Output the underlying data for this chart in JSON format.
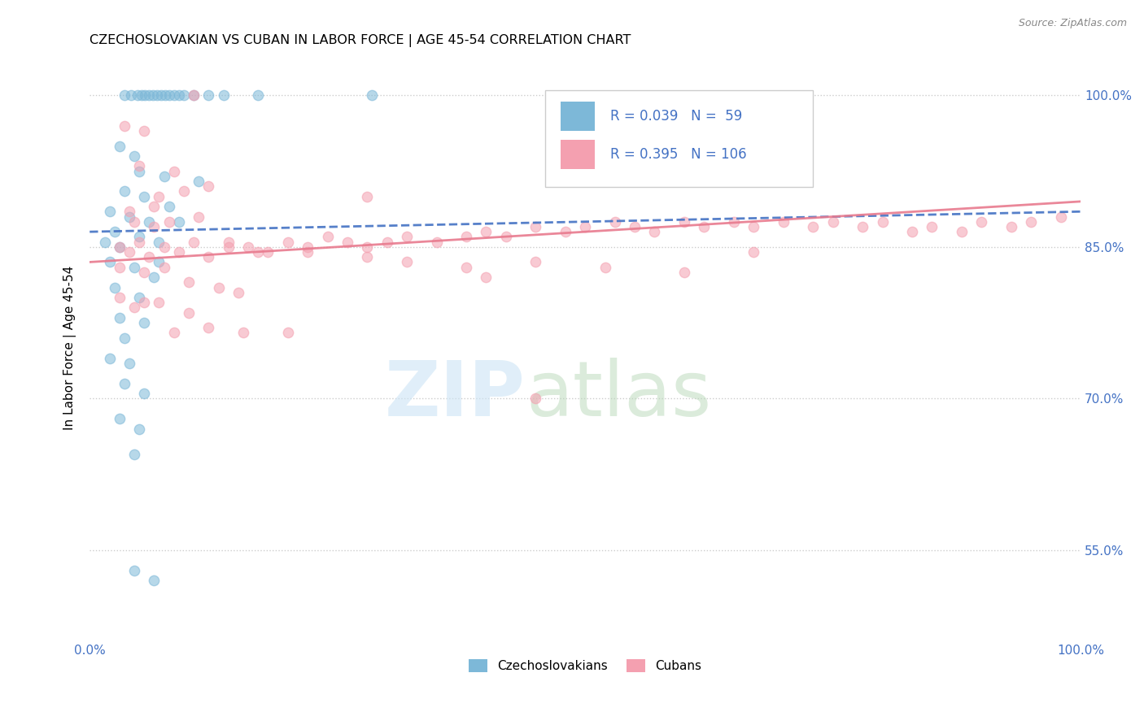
{
  "title": "CZECHOSLOVAKIAN VS CUBAN IN LABOR FORCE | AGE 45-54 CORRELATION CHART",
  "source": "Source: ZipAtlas.com",
  "ylabel": "In Labor Force | Age 45-54",
  "ylabel_ticks": [
    "55.0%",
    "70.0%",
    "85.0%",
    "100.0%"
  ],
  "legend_r_czech": "0.039",
  "legend_n_czech": "59",
  "legend_r_cuban": "0.395",
  "legend_n_cuban": "106",
  "czech_color": "#7db8d8",
  "cuban_color": "#f4a0b0",
  "xmin": 0.0,
  "xmax": 100.0,
  "ymin": 46.0,
  "ymax": 104.0,
  "ytick_positions": [
    55.0,
    70.0,
    85.0,
    100.0
  ],
  "czech_points": [
    [
      3.5,
      100.0
    ],
    [
      4.2,
      100.0
    ],
    [
      4.8,
      100.0
    ],
    [
      5.2,
      100.0
    ],
    [
      5.6,
      100.0
    ],
    [
      6.0,
      100.0
    ],
    [
      6.4,
      100.0
    ],
    [
      6.8,
      100.0
    ],
    [
      7.2,
      100.0
    ],
    [
      7.6,
      100.0
    ],
    [
      8.0,
      100.0
    ],
    [
      8.5,
      100.0
    ],
    [
      9.0,
      100.0
    ],
    [
      9.5,
      100.0
    ],
    [
      10.5,
      100.0
    ],
    [
      12.0,
      100.0
    ],
    [
      13.5,
      100.0
    ],
    [
      17.0,
      100.0
    ],
    [
      28.5,
      100.0
    ],
    [
      3.0,
      95.0
    ],
    [
      4.5,
      94.0
    ],
    [
      5.0,
      92.5
    ],
    [
      7.5,
      92.0
    ],
    [
      11.0,
      91.5
    ],
    [
      3.5,
      90.5
    ],
    [
      5.5,
      90.0
    ],
    [
      8.0,
      89.0
    ],
    [
      2.0,
      88.5
    ],
    [
      4.0,
      88.0
    ],
    [
      6.0,
      87.5
    ],
    [
      9.0,
      87.5
    ],
    [
      2.5,
      86.5
    ],
    [
      5.0,
      86.0
    ],
    [
      1.5,
      85.5
    ],
    [
      3.0,
      85.0
    ],
    [
      7.0,
      85.5
    ],
    [
      2.0,
      83.5
    ],
    [
      4.5,
      83.0
    ],
    [
      6.5,
      82.0
    ],
    [
      2.5,
      81.0
    ],
    [
      5.0,
      80.0
    ],
    [
      3.0,
      78.0
    ],
    [
      5.5,
      77.5
    ],
    [
      3.5,
      76.0
    ],
    [
      2.0,
      74.0
    ],
    [
      4.0,
      73.5
    ],
    [
      3.5,
      71.5
    ],
    [
      5.5,
      70.5
    ],
    [
      3.0,
      68.0
    ],
    [
      5.0,
      67.0
    ],
    [
      4.5,
      64.5
    ],
    [
      4.5,
      53.0
    ],
    [
      6.5,
      52.0
    ],
    [
      7.0,
      83.5
    ]
  ],
  "cuban_points": [
    [
      3.0,
      85.0
    ],
    [
      4.0,
      84.5
    ],
    [
      5.0,
      85.5
    ],
    [
      6.0,
      84.0
    ],
    [
      7.5,
      85.0
    ],
    [
      9.0,
      84.5
    ],
    [
      10.5,
      85.5
    ],
    [
      12.0,
      84.0
    ],
    [
      14.0,
      85.5
    ],
    [
      16.0,
      85.0
    ],
    [
      18.0,
      84.5
    ],
    [
      20.0,
      85.5
    ],
    [
      22.0,
      85.0
    ],
    [
      24.0,
      86.0
    ],
    [
      26.0,
      85.5
    ],
    [
      28.0,
      85.0
    ],
    [
      30.0,
      85.5
    ],
    [
      32.0,
      86.0
    ],
    [
      35.0,
      85.5
    ],
    [
      38.0,
      86.0
    ],
    [
      40.0,
      86.5
    ],
    [
      42.0,
      86.0
    ],
    [
      45.0,
      87.0
    ],
    [
      48.0,
      86.5
    ],
    [
      50.0,
      87.0
    ],
    [
      53.0,
      87.5
    ],
    [
      55.0,
      87.0
    ],
    [
      57.0,
      86.5
    ],
    [
      60.0,
      87.5
    ],
    [
      62.0,
      87.0
    ],
    [
      65.0,
      87.5
    ],
    [
      67.0,
      87.0
    ],
    [
      70.0,
      87.5
    ],
    [
      73.0,
      87.0
    ],
    [
      75.0,
      87.5
    ],
    [
      78.0,
      87.0
    ],
    [
      80.0,
      87.5
    ],
    [
      83.0,
      86.5
    ],
    [
      85.0,
      87.0
    ],
    [
      88.0,
      86.5
    ],
    [
      90.0,
      87.5
    ],
    [
      93.0,
      87.0
    ],
    [
      95.0,
      87.5
    ],
    [
      98.0,
      88.0
    ],
    [
      3.5,
      97.0
    ],
    [
      5.5,
      96.5
    ],
    [
      5.0,
      93.0
    ],
    [
      8.5,
      92.5
    ],
    [
      7.0,
      90.0
    ],
    [
      9.5,
      90.5
    ],
    [
      12.0,
      91.0
    ],
    [
      4.0,
      88.5
    ],
    [
      6.5,
      89.0
    ],
    [
      8.0,
      87.5
    ],
    [
      11.0,
      88.0
    ],
    [
      3.0,
      83.0
    ],
    [
      5.5,
      82.5
    ],
    [
      7.5,
      83.0
    ],
    [
      10.0,
      81.5
    ],
    [
      13.0,
      81.0
    ],
    [
      15.0,
      80.5
    ],
    [
      4.5,
      79.0
    ],
    [
      7.0,
      79.5
    ],
    [
      10.0,
      78.5
    ],
    [
      8.5,
      76.5
    ],
    [
      12.0,
      77.0
    ],
    [
      15.5,
      76.5
    ],
    [
      4.5,
      87.5
    ],
    [
      6.5,
      87.0
    ],
    [
      14.0,
      85.0
    ],
    [
      17.0,
      84.5
    ],
    [
      22.0,
      84.5
    ],
    [
      28.0,
      84.0
    ],
    [
      32.0,
      83.5
    ],
    [
      38.0,
      83.0
    ],
    [
      45.0,
      83.5
    ],
    [
      52.0,
      83.0
    ],
    [
      60.0,
      82.5
    ],
    [
      67.0,
      84.5
    ],
    [
      3.0,
      80.0
    ],
    [
      5.5,
      79.5
    ],
    [
      20.0,
      76.5
    ],
    [
      45.0,
      70.0
    ],
    [
      10.5,
      100.0
    ],
    [
      28.0,
      90.0
    ],
    [
      40.0,
      82.0
    ]
  ]
}
